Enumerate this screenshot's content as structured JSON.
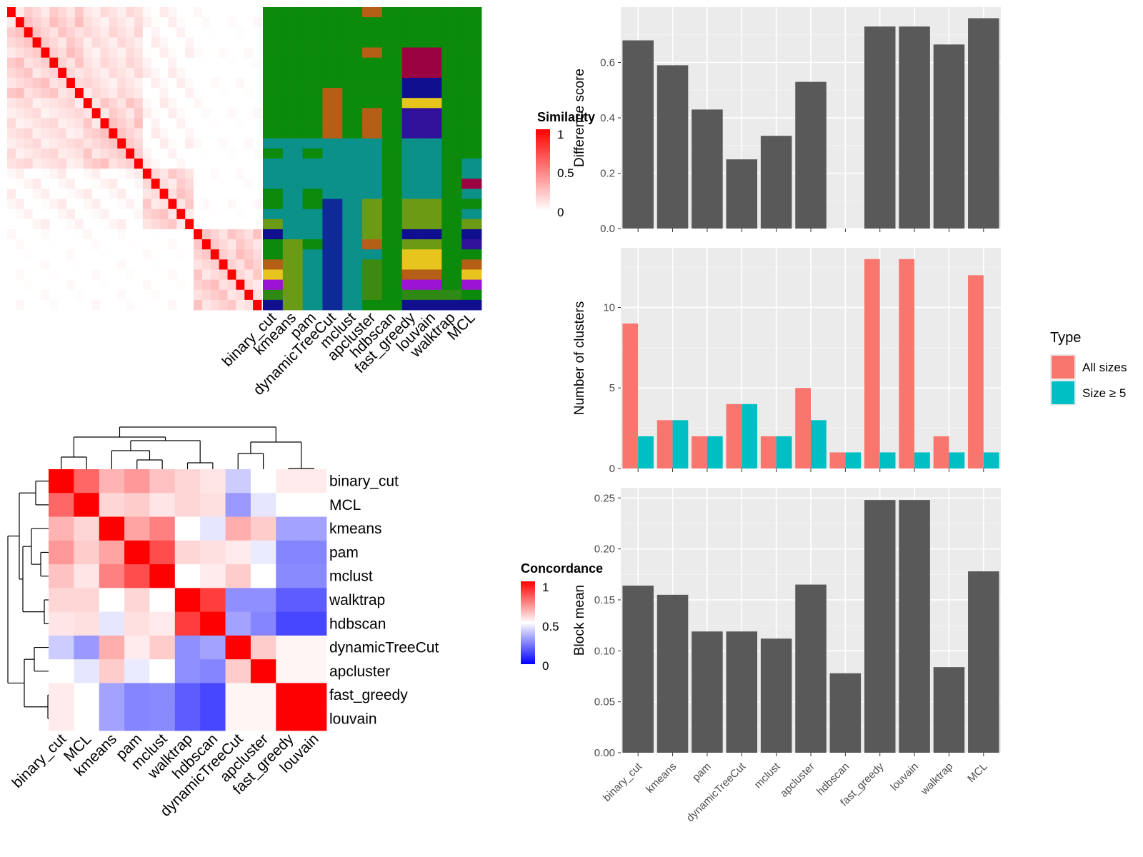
{
  "chart_data": [
    {
      "type": "heatmap",
      "panel": "similarity-matrix",
      "legend_title": "Similarity",
      "legend_ticks": [
        "1",
        "0.5",
        "0"
      ],
      "size": 30,
      "band_groups": [
        [
          0,
          9
        ],
        [
          9,
          16
        ],
        [
          16,
          22
        ],
        [
          22,
          30
        ]
      ],
      "colors": {
        "low": "#ffffff",
        "high": "#ff0000"
      }
    },
    {
      "type": "heatmap",
      "panel": "cluster-assignment",
      "methods": [
        "binary_cut",
        "kmeans",
        "pam",
        "dynamicTreeCut",
        "mclust",
        "apcluster",
        "hdbscan",
        "fast_greedy",
        "louvain",
        "walktrap",
        "MCL"
      ],
      "palette": {
        "G": "#0b8a0b",
        "T": "#0b918a",
        "O": "#b45f15",
        "M": "#9b0241",
        "N": "#10108f",
        "Y": "#e8c51c",
        "I": "#32119a",
        "L": "#6b9b14",
        "D": "#0d2a96",
        "P": "#9b13d4",
        "F": "#2e8a14",
        "X": "#3c8a10"
      },
      "rows": [
        "GGGGGOGGGGG",
        "GGGGGGGGGGG",
        "GGGGGGGGGGG",
        "GGGGGGGGGGG",
        "GGGGGOGMMGG",
        "GGGGGGGMMGG",
        "GGGGGGGMMGG",
        "GGGGGGGNNGG",
        "GGGOGGGNNGG",
        "GGGOGGGYYGG",
        "GGGOGOGIIGG",
        "GGGOGOGIIGG",
        "GGGOGOGIIGG",
        "TTTTTTGTTGG",
        "GTGTTTGTTGG",
        "TTTTTTGTTGT",
        "TTTTTTGTTGT",
        "TTTTTTGTTGM",
        "GTGTTTGTTGT",
        "GTGDTLGLLGG",
        "TTTDTLGLLGT",
        "LTTDTLGLLGL",
        "NTTDTLGNNGN",
        "GLGDTOGLLGI",
        "GLTDTTGYYGG",
        "OLTDTXGYYGO",
        "YLTDTXGOOGY",
        "PLTDTXGPPGP",
        "FLTDTXGFFFG",
        "NLTDTGGNNNN"
      ]
    },
    {
      "type": "bar",
      "panel": "difference-score",
      "categories": [
        "binary_cut",
        "kmeans",
        "pam",
        "dynamicTreeCut",
        "mclust",
        "apcluster",
        "hdbscan",
        "fast_greedy",
        "louvain",
        "walktrap",
        "MCL"
      ],
      "values": [
        0.68,
        0.59,
        0.43,
        0.25,
        0.335,
        0.53,
        0,
        0.73,
        0.73,
        0.665,
        0.76
      ],
      "ylabel": "Difference score",
      "ylim": [
        0,
        0.8
      ],
      "yticks": [
        "0.0",
        "0.2",
        "0.4",
        "0.6"
      ]
    },
    {
      "type": "bar",
      "panel": "number-of-clusters",
      "categories": [
        "binary_cut",
        "kmeans",
        "pam",
        "dynamicTreeCut",
        "mclust",
        "apcluster",
        "hdbscan",
        "fast_greedy",
        "louvain",
        "walktrap",
        "MCL"
      ],
      "series": [
        {
          "name": "All sizes",
          "values": [
            9,
            3,
            2,
            4,
            2,
            5,
            1,
            13,
            13,
            2,
            12
          ],
          "color": "#f8766d"
        },
        {
          "name": "Size ≥ 5",
          "values": [
            2,
            3,
            2,
            4,
            2,
            3,
            1,
            1,
            1,
            1,
            1
          ],
          "color": "#00bfc4"
        }
      ],
      "ylabel": "Number of clusters",
      "ylim": [
        0,
        13.7
      ],
      "yticks": [
        "0",
        "5",
        "10"
      ],
      "legend_title": "Type"
    },
    {
      "type": "bar",
      "panel": "block-mean",
      "categories": [
        "binary_cut",
        "kmeans",
        "pam",
        "dynamicTreeCut",
        "mclust",
        "apcluster",
        "hdbscan",
        "fast_greedy",
        "louvain",
        "walktrap",
        "MCL"
      ],
      "values": [
        0.164,
        0.155,
        0.119,
        0.119,
        0.112,
        0.165,
        0.078,
        0.248,
        0.248,
        0.084,
        0.178
      ],
      "ylabel": "Block mean",
      "ylim": [
        0,
        0.26
      ],
      "yticks": [
        "0.00",
        "0.05",
        "0.10",
        "0.15",
        "0.20",
        "0.25"
      ]
    },
    {
      "type": "heatmap",
      "panel": "concordance",
      "legend_title": "Concordance",
      "legend_ticks": [
        "1",
        "0.5",
        "0"
      ],
      "order": [
        "binary_cut",
        "MCL",
        "kmeans",
        "pam",
        "mclust",
        "walktrap",
        "hdbscan",
        "dynamicTreeCut",
        "apcluster",
        "fast_greedy",
        "louvain"
      ],
      "matrix": [
        [
          1.0,
          0.8,
          0.65,
          0.7,
          0.62,
          0.58,
          0.55,
          0.4,
          0.5,
          0.54,
          0.54
        ],
        [
          0.8,
          1.0,
          0.58,
          0.6,
          0.55,
          0.58,
          0.56,
          0.3,
          0.45,
          0.5,
          0.5
        ],
        [
          0.65,
          0.58,
          1.0,
          0.68,
          0.75,
          0.5,
          0.45,
          0.66,
          0.6,
          0.32,
          0.32
        ],
        [
          0.7,
          0.6,
          0.68,
          1.0,
          0.85,
          0.58,
          0.56,
          0.54,
          0.46,
          0.26,
          0.26
        ],
        [
          0.62,
          0.55,
          0.75,
          0.85,
          1.0,
          0.5,
          0.54,
          0.6,
          0.5,
          0.27,
          0.27
        ],
        [
          0.58,
          0.58,
          0.5,
          0.58,
          0.5,
          1.0,
          0.88,
          0.28,
          0.28,
          0.18,
          0.18
        ],
        [
          0.55,
          0.56,
          0.45,
          0.56,
          0.54,
          0.88,
          1.0,
          0.32,
          0.26,
          0.14,
          0.14
        ],
        [
          0.4,
          0.3,
          0.66,
          0.54,
          0.6,
          0.28,
          0.32,
          1.0,
          0.6,
          0.52,
          0.52
        ],
        [
          0.5,
          0.45,
          0.6,
          0.46,
          0.5,
          0.28,
          0.26,
          0.6,
          1.0,
          0.52,
          0.52
        ],
        [
          0.54,
          0.5,
          0.32,
          0.26,
          0.27,
          0.18,
          0.14,
          0.52,
          0.52,
          1.0,
          1.0
        ],
        [
          0.54,
          0.5,
          0.32,
          0.26,
          0.27,
          0.18,
          0.14,
          0.52,
          0.52,
          1.0,
          1.0
        ]
      ]
    }
  ]
}
